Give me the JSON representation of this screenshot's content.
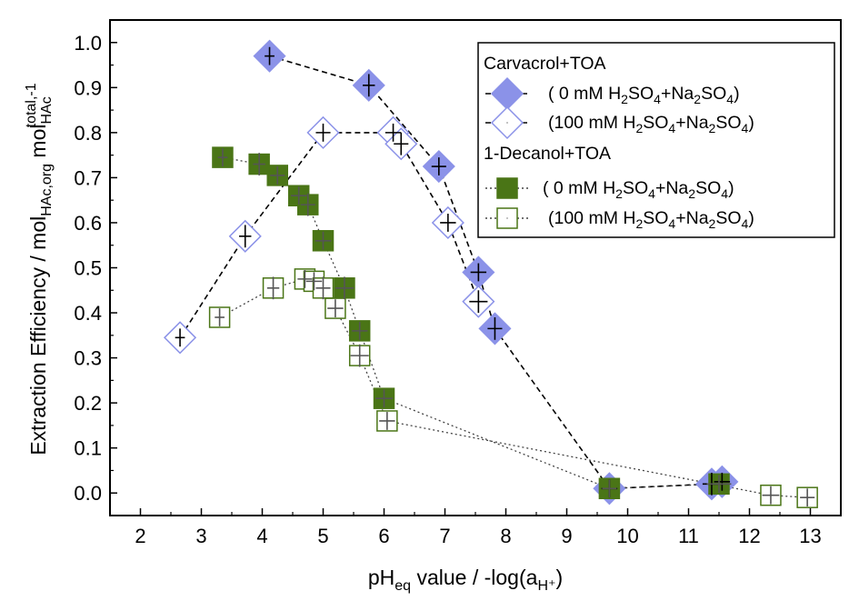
{
  "chart_data": {
    "type": "scatter",
    "xlabel": {
      "main": "pH",
      "sub": "eq",
      "rest": " value / -log(a",
      "sub2": "H⁺",
      "close": ")"
    },
    "ylabel": {
      "main": "Extraction Efficiency / mol",
      "sub1": "HAc,org",
      "mid": " mol",
      "sub2": "HAc",
      "sup2": "total,-1"
    },
    "xlim": [
      1.5,
      13.5
    ],
    "ylim": [
      -0.05,
      1.05
    ],
    "x_ticks": [
      2,
      3,
      4,
      5,
      6,
      7,
      8,
      9,
      10,
      11,
      12,
      13
    ],
    "y_ticks": [
      "0.0",
      "0.1",
      "0.2",
      "0.3",
      "0.4",
      "0.5",
      "0.6",
      "0.7",
      "0.8",
      "0.9",
      "1.0"
    ],
    "legend": {
      "placement": "top-right",
      "group1": "Carvacrol+TOA",
      "group2": "1-Decanol+TOA",
      "entries": [
        {
          "open": "(    0 mM H",
          "s1": "2",
          "m": "SO",
          "s2": "4",
          "m2": "+Na",
          "s3": "2",
          "m3": "SO",
          "s4": "4",
          "close": ")"
        },
        {
          "open": "(100 mM H",
          "s1": "2",
          "m": "SO",
          "s2": "4",
          "m2": "+Na",
          "s3": "2",
          "m3": "SO",
          "s4": "4",
          "close": ")"
        },
        {
          "open": "(    0 mM H",
          "s1": "2",
          "m": "SO",
          "s2": "4",
          "m2": "+Na",
          "s3": "2",
          "m3": "SO",
          "s4": "4",
          "close": ")"
        },
        {
          "open": "(100 mM H",
          "s1": "2",
          "m": "SO",
          "s2": "4",
          "m2": "+Na",
          "s3": "2",
          "m3": "SO",
          "s4": "4",
          "close": ")"
        }
      ]
    },
    "colors": {
      "carvacrol": "#8b92e8",
      "decanol": "#4a7516"
    },
    "series": [
      {
        "marker": "diamond-filled",
        "line": "dashed",
        "x": [
          4.12,
          5.75,
          6.9,
          7.55,
          7.82,
          9.7,
          11.38,
          11.55
        ],
        "y": [
          0.97,
          0.905,
          0.725,
          0.49,
          0.365,
          0.01,
          0.02,
          0.025
        ]
      },
      {
        "marker": "diamond-open",
        "line": "dashed",
        "x": [
          2.65,
          3.72,
          5.0,
          6.15,
          6.28,
          7.05,
          7.55
        ],
        "y": [
          0.345,
          0.57,
          0.8,
          0.8,
          0.775,
          0.6,
          0.425
        ]
      },
      {
        "marker": "square-filled",
        "line": "dotted",
        "x": [
          3.35,
          3.95,
          4.25,
          4.6,
          4.75,
          5.0,
          5.35,
          5.6,
          6.0,
          9.7,
          11.5
        ],
        "y": [
          0.745,
          0.73,
          0.705,
          0.66,
          0.64,
          0.56,
          0.455,
          0.36,
          0.21,
          0.01,
          0.02
        ]
      },
      {
        "marker": "square-open",
        "line": "dotted",
        "x": [
          3.3,
          4.18,
          4.7,
          4.85,
          5.0,
          5.2,
          5.6,
          6.05,
          12.35,
          12.95
        ],
        "y": [
          0.39,
          0.455,
          0.475,
          0.47,
          0.455,
          0.41,
          0.305,
          0.16,
          -0.005,
          -0.01
        ]
      }
    ],
    "x_error": [
      0.08,
      0.1,
      0.12,
      0.13,
      0.12,
      0.13,
      0.15,
      0.13,
      0.14,
      0.12,
      0.2
    ],
    "y_error": [
      0.02,
      0.025,
      0.02,
      0.02,
      0.025,
      0.02,
      0.025,
      0.02,
      0.02,
      0.02,
      0.02
    ]
  }
}
